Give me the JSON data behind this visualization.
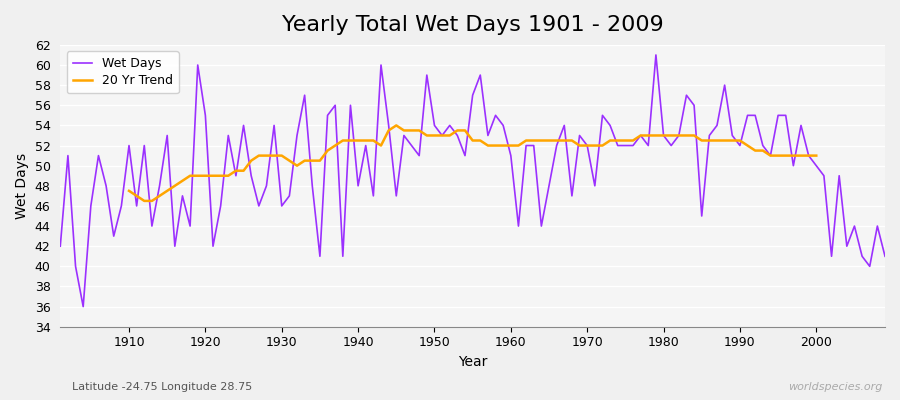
{
  "title": "Yearly Total Wet Days 1901 - 2009",
  "xlabel": "Year",
  "ylabel": "Wet Days",
  "subtitle": "Latitude -24.75 Longitude 28.75",
  "watermark": "worldspecies.org",
  "ylim": [
    34,
    62
  ],
  "yticks": [
    34,
    36,
    38,
    40,
    42,
    44,
    46,
    48,
    50,
    52,
    54,
    56,
    58,
    60,
    62
  ],
  "years": [
    1901,
    1902,
    1903,
    1904,
    1905,
    1906,
    1907,
    1908,
    1909,
    1910,
    1911,
    1912,
    1913,
    1914,
    1915,
    1916,
    1917,
    1918,
    1919,
    1920,
    1921,
    1922,
    1923,
    1924,
    1925,
    1926,
    1927,
    1928,
    1929,
    1930,
    1931,
    1932,
    1933,
    1934,
    1935,
    1936,
    1937,
    1938,
    1939,
    1940,
    1941,
    1942,
    1943,
    1944,
    1945,
    1946,
    1947,
    1948,
    1949,
    1950,
    1951,
    1952,
    1953,
    1954,
    1955,
    1956,
    1957,
    1958,
    1959,
    1960,
    1961,
    1962,
    1963,
    1964,
    1965,
    1966,
    1967,
    1968,
    1969,
    1970,
    1971,
    1972,
    1973,
    1974,
    1975,
    1976,
    1977,
    1978,
    1979,
    1980,
    1981,
    1982,
    1983,
    1984,
    1985,
    1986,
    1987,
    1988,
    1989,
    1990,
    1991,
    1992,
    1993,
    1994,
    1995,
    1996,
    1997,
    1998,
    1999,
    2000,
    2001,
    2002,
    2003,
    2004,
    2005,
    2006,
    2007,
    2008,
    2009
  ],
  "wet_days": [
    42,
    51,
    40,
    36,
    46,
    51,
    48,
    43,
    46,
    52,
    46,
    52,
    44,
    48,
    53,
    42,
    47,
    44,
    60,
    55,
    42,
    46,
    53,
    49,
    54,
    49,
    46,
    48,
    54,
    46,
    47,
    53,
    57,
    48,
    41,
    55,
    56,
    41,
    56,
    48,
    52,
    47,
    60,
    54,
    47,
    53,
    52,
    51,
    59,
    54,
    53,
    54,
    53,
    51,
    57,
    59,
    53,
    55,
    54,
    51,
    44,
    52,
    52,
    44,
    48,
    52,
    54,
    47,
    53,
    52,
    48,
    55,
    54,
    52,
    52,
    52,
    53,
    52,
    61,
    53,
    52,
    53,
    57,
    56,
    45,
    53,
    54,
    58,
    53,
    52,
    55,
    55,
    52,
    51,
    55,
    55,
    50,
    54,
    51,
    50,
    49,
    41,
    49,
    42,
    44,
    41,
    40,
    44,
    41
  ],
  "trend_years": [
    1910,
    1911,
    1912,
    1913,
    1914,
    1915,
    1916,
    1917,
    1918,
    1919,
    1920,
    1921,
    1922,
    1923,
    1924,
    1925,
    1926,
    1927,
    1928,
    1929,
    1930,
    1931,
    1932,
    1933,
    1934,
    1935,
    1936,
    1937,
    1938,
    1939,
    1940,
    1941,
    1942,
    1943,
    1944,
    1945,
    1946,
    1947,
    1948,
    1949,
    1950,
    1951,
    1952,
    1953,
    1954,
    1955,
    1956,
    1957,
    1958,
    1959,
    1960,
    1961,
    1962,
    1963,
    1964,
    1965,
    1966,
    1967,
    1968,
    1969,
    1970,
    1971,
    1972,
    1973,
    1974,
    1975,
    1976,
    1977,
    1978,
    1979,
    1980,
    1981,
    1982,
    1983,
    1984,
    1985,
    1986,
    1987,
    1988,
    1989,
    1990,
    1991,
    1992,
    1993,
    1994,
    1995,
    1996,
    1997,
    1998,
    1999,
    2000
  ],
  "trend_values": [
    47.5,
    47.0,
    46.5,
    46.5,
    47.0,
    47.5,
    48.0,
    48.5,
    49.0,
    49.0,
    49.0,
    49.0,
    49.0,
    49.0,
    49.5,
    49.5,
    50.5,
    51.0,
    51.0,
    51.0,
    51.0,
    50.5,
    50.0,
    50.5,
    50.5,
    50.5,
    51.5,
    52.0,
    52.5,
    52.5,
    52.5,
    52.5,
    52.5,
    52.0,
    53.5,
    54.0,
    53.5,
    53.5,
    53.5,
    53.0,
    53.0,
    53.0,
    53.0,
    53.5,
    53.5,
    52.5,
    52.5,
    52.0,
    52.0,
    52.0,
    52.0,
    52.0,
    52.5,
    52.5,
    52.5,
    52.5,
    52.5,
    52.5,
    52.5,
    52.0,
    52.0,
    52.0,
    52.0,
    52.5,
    52.5,
    52.5,
    52.5,
    53.0,
    53.0,
    53.0,
    53.0,
    53.0,
    53.0,
    53.0,
    53.0,
    52.5,
    52.5,
    52.5,
    52.5,
    52.5,
    52.5,
    52.0,
    51.5,
    51.5,
    51.0,
    51.0,
    51.0,
    51.0,
    51.0,
    51.0,
    51.0
  ],
  "wet_days_color": "#9B30FF",
  "trend_color": "#FFA500",
  "background_color": "#f0f0f0",
  "plot_bg_color": "#f5f5f5",
  "grid_color": "#ffffff",
  "title_fontsize": 16,
  "label_fontsize": 10,
  "tick_fontsize": 9
}
